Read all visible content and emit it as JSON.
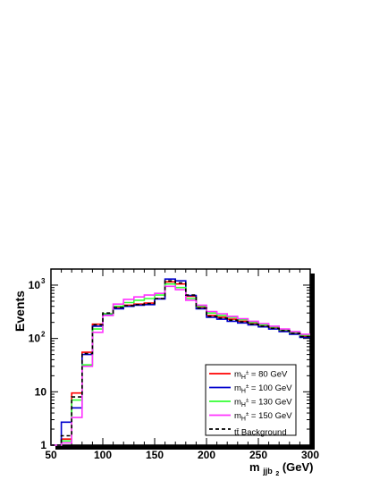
{
  "chart_data": {
    "type": "histogram-step",
    "xlabel_main": "m",
    "xlabel_sub": "jjb",
    "xlabel_subsub": "2",
    "xlabel_unit": " (GeV)",
    "ylabel": "Events",
    "xlim": [
      50,
      300
    ],
    "ylim": [
      1,
      2000
    ],
    "yscale": "log",
    "x_ticks": [
      50,
      100,
      150,
      200,
      250,
      300
    ],
    "y_ticks": [
      {
        "value": 1,
        "label": "1"
      },
      {
        "value": 10,
        "label": "10"
      },
      {
        "value": 100,
        "label": "10",
        "exp": "2"
      },
      {
        "value": 1000,
        "label": "10",
        "exp": "3"
      }
    ],
    "bin_edges": [
      50,
      60,
      70,
      80,
      90,
      100,
      110,
      120,
      130,
      140,
      150,
      160,
      170,
      180,
      190,
      200,
      210,
      220,
      230,
      240,
      250,
      260,
      270,
      280,
      290,
      300
    ],
    "legend_position": "bottom-right",
    "series": [
      {
        "name_pre": "m",
        "name_sub": "H",
        "name_sup": "±",
        "name_post": " = 80 GeV",
        "color": "#ff0000",
        "dashed": false,
        "values": [
          1,
          1.3,
          9.5,
          55,
          185,
          290,
          380,
          420,
          440,
          460,
          560,
          1150,
          1050,
          620,
          380,
          270,
          250,
          230,
          210,
          190,
          175,
          160,
          140,
          125,
          110
        ]
      },
      {
        "name_pre": "m",
        "name_sub": "H",
        "name_sup": "±",
        "name_post": " = 100 GeV",
        "color": "#0000cc",
        "dashed": false,
        "values": [
          1,
          2.7,
          5,
          50,
          170,
          280,
          360,
          400,
          420,
          430,
          550,
          1300,
          1200,
          640,
          360,
          250,
          230,
          210,
          195,
          180,
          165,
          150,
          135,
          120,
          105
        ]
      },
      {
        "name_pre": "m",
        "name_sub": "H",
        "name_sup": "±",
        "name_post": " = 130 GeV",
        "color": "#33ff33",
        "dashed": false,
        "values": [
          1,
          1.2,
          7,
          32,
          150,
          290,
          400,
          470,
          520,
          560,
          650,
          1050,
          900,
          560,
          400,
          300,
          270,
          250,
          225,
          200,
          180,
          165,
          145,
          130,
          115
        ]
      },
      {
        "name_pre": "m",
        "name_sub": "H",
        "name_sup": "±",
        "name_post": " = 150 GeV",
        "color": "#ff33ff",
        "dashed": false,
        "values": [
          1,
          1.1,
          3.3,
          30,
          130,
          270,
          440,
          540,
          600,
          650,
          700,
          950,
          820,
          520,
          420,
          320,
          290,
          260,
          235,
          210,
          190,
          170,
          150,
          135,
          120
        ]
      },
      {
        "name_pre": "",
        "name_sub": "",
        "name_sup": "",
        "name_post": "tt̄ Background",
        "color": "#000000",
        "dashed": true,
        "values": [
          1,
          1.5,
          8,
          52,
          180,
          300,
          380,
          410,
          430,
          450,
          560,
          1200,
          1100,
          650,
          370,
          260,
          240,
          220,
          205,
          185,
          170,
          155,
          140,
          125,
          108
        ]
      }
    ]
  }
}
